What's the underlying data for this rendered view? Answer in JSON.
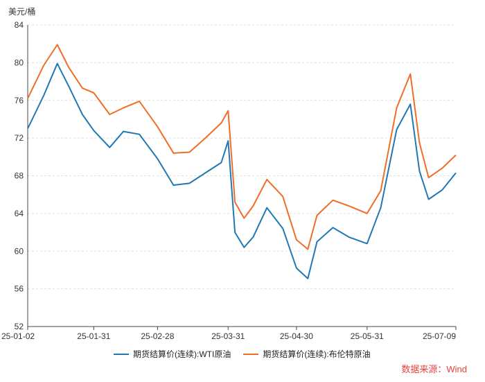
{
  "chart_data": {
    "type": "line",
    "unit_label": "美元/桶",
    "ylim": [
      52,
      84
    ],
    "yticks": [
      52,
      56,
      60,
      64,
      68,
      72,
      76,
      80,
      84
    ],
    "grid": true,
    "legend_position": "bottom",
    "x": [
      "2025-01-02",
      "2025-01-09",
      "2025-01-15",
      "2025-01-20",
      "2025-01-26",
      "2025-01-31",
      "2025-02-07",
      "2025-02-13",
      "2025-02-20",
      "2025-02-28",
      "2025-03-07",
      "2025-03-14",
      "2025-03-21",
      "2025-03-28",
      "2025-03-31",
      "2025-04-03",
      "2025-04-07",
      "2025-04-11",
      "2025-04-17",
      "2025-04-24",
      "2025-04-30",
      "2025-05-05",
      "2025-05-09",
      "2025-05-16",
      "2025-05-23",
      "2025-05-31",
      "2025-06-06",
      "2025-06-13",
      "2025-06-19",
      "2025-06-23",
      "2025-06-27",
      "2025-07-03",
      "2025-07-09"
    ],
    "xtick_labels": [
      "25-01-02",
      "25-01-31",
      "25-02-28",
      "25-03-31",
      "25-04-30",
      "25-05-31",
      "25-07-09"
    ],
    "xtick_dates": [
      "2025-01-02",
      "2025-01-31",
      "2025-02-28",
      "2025-03-31",
      "2025-04-30",
      "2025-05-31",
      "2025-07-09"
    ],
    "series": [
      {
        "name": "期货结算价(连续):WTI原油",
        "color": "#1f77b4",
        "values": [
          73.0,
          76.5,
          79.9,
          77.5,
          74.5,
          72.8,
          71.0,
          72.7,
          72.4,
          69.8,
          67.0,
          67.2,
          68.3,
          69.4,
          71.7,
          62.0,
          60.4,
          61.5,
          64.6,
          62.4,
          58.2,
          57.1,
          61.0,
          62.5,
          61.5,
          60.8,
          64.6,
          72.9,
          75.6,
          68.5,
          65.5,
          66.5,
          68.3
        ]
      },
      {
        "name": "期货结算价(连续):布伦特原油",
        "color": "#f06d28",
        "values": [
          76.2,
          79.7,
          81.9,
          79.5,
          77.3,
          76.8,
          74.5,
          75.2,
          75.9,
          73.2,
          70.4,
          70.5,
          72.0,
          73.6,
          74.9,
          65.2,
          63.5,
          64.8,
          67.6,
          65.8,
          61.2,
          60.2,
          63.8,
          65.4,
          64.8,
          64.0,
          66.4,
          75.2,
          78.8,
          71.5,
          67.8,
          68.8,
          70.2
        ]
      }
    ]
  },
  "source_text": "数据来源：Wind",
  "colors": {
    "grid": "#dddddd",
    "axis": "#444444",
    "source": "#e8423c"
  }
}
